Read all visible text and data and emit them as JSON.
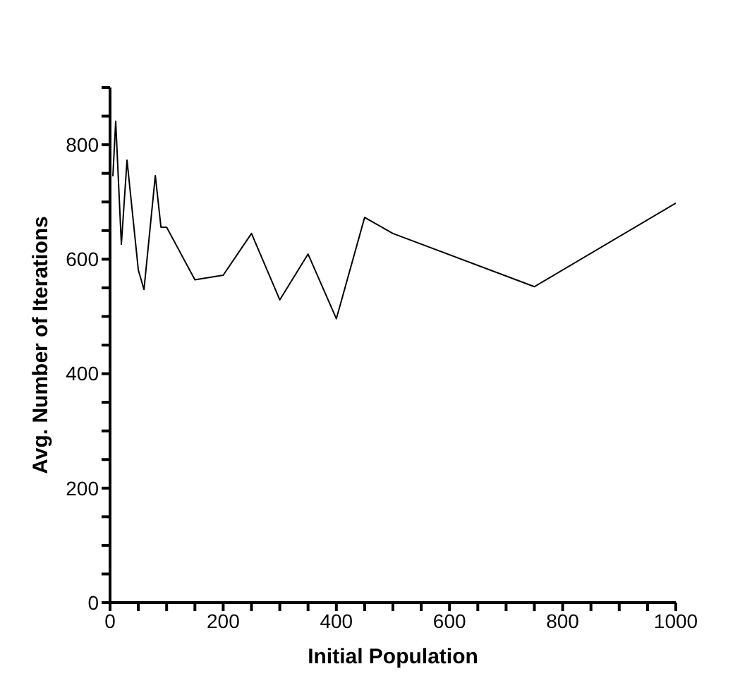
{
  "chart_data": {
    "type": "line",
    "xlabel": "Initial Population",
    "ylabel": "Avg. Number of Iterations",
    "x": [
      5,
      10,
      20,
      30,
      50,
      60,
      80,
      90,
      100,
      150,
      200,
      250,
      300,
      350,
      400,
      450,
      500,
      750,
      1000
    ],
    "series": [
      {
        "color": "#000000",
        "values": [
          745,
          841,
          626,
          773,
          581,
          547,
          746,
          656,
          656,
          564,
          572,
          645,
          529,
          609,
          496,
          673,
          645,
          552,
          698
        ]
      }
    ],
    "xlim": [
      0,
      1000
    ],
    "xticks": [
      0,
      {
        "value": 50,
        "label": null
      },
      {
        "value": 100,
        "label": null
      },
      {
        "value": 150,
        "label": null
      },
      200,
      {
        "value": 250,
        "label": null
      },
      {
        "value": 300,
        "label": null
      },
      {
        "value": 350,
        "label": null
      },
      400,
      {
        "value": 450,
        "label": null
      },
      {
        "value": 500,
        "label": null
      },
      {
        "value": 550,
        "label": null
      },
      600,
      {
        "value": 650,
        "label": null
      },
      {
        "value": 700,
        "label": null
      },
      {
        "value": 750,
        "label": null
      },
      800,
      {
        "value": 850,
        "label": null
      },
      {
        "value": 900,
        "label": null
      },
      {
        "value": 950,
        "label": null
      },
      1000
    ],
    "ylim": [
      0,
      900
    ],
    "yticks": [
      0,
      {
        "value": 50,
        "label": null
      },
      {
        "value": 100,
        "label": null
      },
      {
        "value": 150,
        "label": null
      },
      200,
      {
        "value": 250,
        "label": null
      },
      {
        "value": 300,
        "label": null
      },
      {
        "value": 350,
        "label": null
      },
      400,
      {
        "value": 450,
        "label": null
      },
      {
        "value": 500,
        "label": null
      },
      {
        "value": 550,
        "label": null
      },
      600,
      {
        "value": 650,
        "label": null
      },
      {
        "value": 700,
        "label": null
      },
      {
        "value": 750,
        "label": null
      },
      800,
      {
        "value": 850,
        "label": null
      },
      {
        "value": 900,
        "label": null
      }
    ],
    "grid": false,
    "legend": false,
    "marker": "none",
    "line_style": "solid"
  }
}
